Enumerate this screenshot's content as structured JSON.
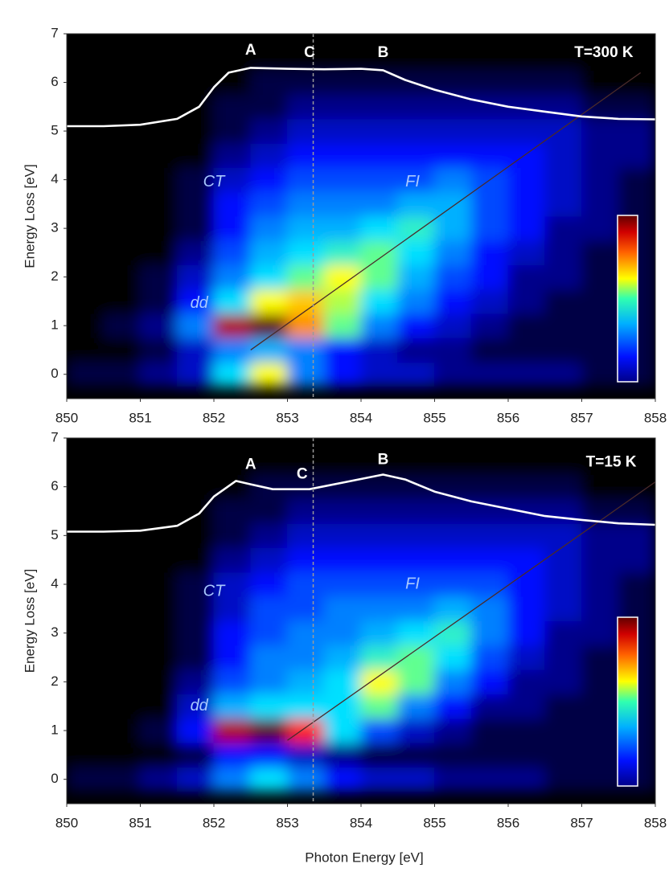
{
  "chart_data": [
    {
      "type": "heatmap",
      "ylabel": "Energy Loss [eV]",
      "xlim": [
        850,
        858
      ],
      "ylim": [
        -0.5,
        7
      ],
      "xticks": [
        850,
        851,
        852,
        853,
        854,
        855,
        856,
        857,
        858
      ],
      "yticks": [
        0,
        1,
        2,
        3,
        4,
        5,
        6,
        7
      ],
      "x": [
        850.25,
        850.75,
        851.25,
        851.75,
        852.25,
        852.75,
        853.25,
        853.75,
        854.25,
        854.75,
        855.25,
        855.75,
        856.25,
        856.75,
        857.25,
        857.75
      ],
      "y": [
        0,
        0.5,
        1,
        1.5,
        2,
        2.5,
        3,
        3.5,
        4,
        4.5,
        5,
        5.5,
        6,
        6.5
      ],
      "z": [
        [
          0.5,
          0.5,
          1,
          1.5,
          4,
          6,
          3,
          2,
          1.5,
          1.5,
          1,
          1,
          1,
          1,
          0.5,
          0.5
        ],
        [
          0,
          0,
          0.5,
          1.5,
          3,
          3.5,
          3,
          2,
          1.5,
          1,
          1,
          0.5,
          0.5,
          0.5,
          0.5,
          0.5
        ],
        [
          0,
          0.5,
          1,
          3,
          9,
          10,
          7,
          5,
          3,
          2,
          1.5,
          1,
          0.5,
          0.5,
          0.5,
          0.5
        ],
        [
          0,
          0,
          0.5,
          2,
          4,
          6,
          6.5,
          5.5,
          4,
          3,
          2,
          1.5,
          1,
          0.5,
          0.5,
          0.5
        ],
        [
          0,
          0,
          0.5,
          1.5,
          3,
          4,
          5,
          6,
          5,
          3.5,
          2.5,
          2,
          1,
          1,
          0.5,
          0.5
        ],
        [
          0,
          0,
          0,
          1,
          2.5,
          3.5,
          4,
          4.5,
          5,
          4,
          3,
          2,
          1.5,
          1,
          0.5,
          0.5
        ],
        [
          0,
          0,
          0,
          0.5,
          2,
          3,
          3.5,
          3.5,
          4,
          4.5,
          3.5,
          2.5,
          2,
          1,
          1,
          0.5
        ],
        [
          0,
          0,
          0,
          0.5,
          2,
          2.5,
          3,
          3,
          3,
          3.5,
          3.5,
          2.5,
          2,
          1.5,
          1,
          0.5
        ],
        [
          0,
          0,
          0,
          0.5,
          1.5,
          2,
          2.5,
          2.5,
          2.5,
          2.5,
          3,
          2.5,
          2,
          1.5,
          1,
          0.5
        ],
        [
          0,
          0,
          0,
          0,
          1,
          1.5,
          2,
          2,
          2,
          2,
          2,
          2,
          2,
          1.5,
          1,
          1
        ],
        [
          0,
          0,
          0,
          0,
          0.5,
          1,
          1.5,
          1.5,
          1.5,
          1.5,
          1.5,
          1.5,
          1.5,
          1.5,
          1,
          1
        ],
        [
          0,
          0,
          0,
          0,
          0.5,
          0.5,
          1,
          1,
          1,
          1,
          1,
          1,
          1,
          1,
          0.5,
          0.5
        ],
        [
          0,
          0,
          0,
          0,
          0,
          0.5,
          0.5,
          0.5,
          0.5,
          0.5,
          0.5,
          0.5,
          0.5,
          0.5,
          0,
          0
        ],
        [
          0,
          0,
          0,
          0,
          0,
          0,
          0,
          0,
          0,
          0,
          0,
          0,
          0,
          0,
          0,
          0
        ]
      ],
      "curve": {
        "color": "#ffffff",
        "x": [
          850,
          850.5,
          851,
          851.5,
          851.8,
          852,
          852.2,
          852.5,
          853,
          853.5,
          854,
          854.3,
          854.6,
          855,
          855.5,
          856,
          856.5,
          857,
          857.5,
          858
        ],
        "y": [
          5.1,
          5.1,
          5.13,
          5.25,
          5.5,
          5.9,
          6.2,
          6.3,
          6.28,
          6.27,
          6.28,
          6.25,
          6.05,
          5.85,
          5.65,
          5.5,
          5.4,
          5.3,
          5.25,
          5.24
        ]
      },
      "guide": {
        "color": "#4a2a2a",
        "x": [
          852.5,
          857.8
        ],
        "y": [
          0.5,
          6.2
        ]
      },
      "vline": {
        "color": "#9a9a9a",
        "x": 853.35
      },
      "annotations": [
        {
          "text": "A",
          "x": 852.5,
          "y": 6.65,
          "color": "#ffffff"
        },
        {
          "text": "C",
          "x": 853.3,
          "y": 6.6,
          "color": "#ffffff"
        },
        {
          "text": "B",
          "x": 854.3,
          "y": 6.6,
          "color": "#ffffff"
        },
        {
          "text": "T=300 K",
          "x": 857.3,
          "y": 6.6,
          "color": "#ffffff"
        },
        {
          "text": "CT",
          "x": 852.0,
          "y": 3.95,
          "color": "#a8c8ff",
          "italic": true
        },
        {
          "text": "FI",
          "x": 854.7,
          "y": 3.95,
          "color": "#a8c8ff",
          "italic": true
        },
        {
          "text": "dd",
          "x": 851.8,
          "y": 1.45,
          "color": "#a8c8ff",
          "italic": true
        }
      ]
    },
    {
      "type": "heatmap",
      "ylabel": "Energy Loss [eV]",
      "xlabel": "Photon Energy [eV]",
      "xlim": [
        850,
        858
      ],
      "ylim": [
        -0.5,
        7
      ],
      "xticks": [
        850,
        851,
        852,
        853,
        854,
        855,
        856,
        857,
        858
      ],
      "yticks": [
        0,
        1,
        2,
        3,
        4,
        5,
        6,
        7
      ],
      "x": [
        850.25,
        850.75,
        851.25,
        851.75,
        852.25,
        852.75,
        853.25,
        853.75,
        854.25,
        854.75,
        855.25,
        855.75,
        856.25,
        856.75,
        857.25,
        857.75
      ],
      "y": [
        0,
        0.5,
        1,
        1.5,
        2,
        2.5,
        3,
        3.5,
        4,
        4.5,
        5,
        5.5,
        6,
        6.5
      ],
      "z": [
        [
          0.5,
          0.5,
          1,
          1.5,
          3,
          4,
          3,
          2,
          1.5,
          1.5,
          1,
          1,
          1,
          0.5,
          0.5,
          0.5
        ],
        [
          0,
          0,
          0,
          0.5,
          2,
          2,
          1.5,
          1,
          0.5,
          0.5,
          0.5,
          0.5,
          0.5,
          0.5,
          0.5,
          0.5
        ],
        [
          0,
          0,
          0.5,
          2,
          9,
          10,
          8,
          4,
          2.5,
          1.5,
          1,
          0.5,
          0.5,
          0.5,
          0.5,
          0.5
        ],
        [
          0,
          0,
          0,
          1.5,
          3.5,
          4,
          4,
          4,
          5,
          3,
          2,
          1,
          1,
          0.5,
          0.5,
          0.5
        ],
        [
          0,
          0,
          0,
          1,
          2.5,
          3,
          3.5,
          4,
          6,
          5,
          3,
          2,
          1,
          1,
          0.5,
          0.5
        ],
        [
          0,
          0,
          0,
          0.5,
          2,
          3,
          3,
          3.5,
          4.5,
          5,
          4,
          2.5,
          1.5,
          1,
          0.5,
          0.5
        ],
        [
          0,
          0,
          0,
          0.5,
          2,
          2.5,
          3,
          3,
          3.5,
          4,
          4.5,
          3,
          2,
          1,
          1,
          0.5
        ],
        [
          0,
          0,
          0,
          0.5,
          1.5,
          2.5,
          2.5,
          3,
          3,
          3,
          3.5,
          3,
          2,
          1.5,
          1,
          0.5
        ],
        [
          0,
          0,
          0,
          0.5,
          1.5,
          2,
          2.5,
          2.5,
          2.5,
          2.5,
          2.5,
          2.5,
          2,
          1.5,
          1,
          0.5
        ],
        [
          0,
          0,
          0,
          0,
          1,
          1.5,
          2,
          2,
          2,
          2,
          2,
          2,
          2,
          1.5,
          1,
          1
        ],
        [
          0,
          0,
          0,
          0,
          0.5,
          1,
          1.5,
          1.5,
          1.5,
          1.5,
          1.5,
          1.5,
          1.5,
          1.5,
          1,
          1
        ],
        [
          0,
          0,
          0,
          0,
          0.5,
          0.5,
          1,
          1,
          1,
          1,
          1,
          1,
          1,
          1,
          0.5,
          0.5
        ],
        [
          0,
          0,
          0,
          0,
          0,
          0.5,
          0.5,
          0.5,
          0.5,
          0.5,
          0.5,
          0.5,
          0.5,
          0.5,
          0,
          0
        ],
        [
          0,
          0,
          0,
          0,
          0,
          0,
          0,
          0,
          0,
          0,
          0,
          0,
          0,
          0,
          0,
          0
        ]
      ],
      "curve": {
        "color": "#ffffff",
        "x": [
          850,
          850.5,
          851,
          851.5,
          851.8,
          852,
          852.3,
          852.5,
          852.8,
          853.3,
          853.8,
          854.3,
          854.6,
          855,
          855.5,
          856,
          856.5,
          857,
          857.5,
          858
        ],
        "y": [
          5.08,
          5.08,
          5.1,
          5.2,
          5.45,
          5.8,
          6.12,
          6.05,
          5.95,
          5.95,
          6.1,
          6.25,
          6.15,
          5.9,
          5.7,
          5.55,
          5.4,
          5.32,
          5.25,
          5.22
        ]
      },
      "guide": {
        "color": "#4a2a2a",
        "x": [
          853.0,
          858
        ],
        "y": [
          0.8,
          6.1
        ]
      },
      "vline": {
        "color": "#9a9a9a",
        "x": 853.35
      },
      "annotations": [
        {
          "text": "A",
          "x": 852.5,
          "y": 6.45,
          "color": "#ffffff"
        },
        {
          "text": "C",
          "x": 853.2,
          "y": 6.25,
          "color": "#ffffff"
        },
        {
          "text": "B",
          "x": 854.3,
          "y": 6.55,
          "color": "#ffffff"
        },
        {
          "text": "T=15 K",
          "x": 857.4,
          "y": 6.5,
          "color": "#ffffff"
        },
        {
          "text": "CT",
          "x": 852.0,
          "y": 3.85,
          "color": "#a8c8ff",
          "italic": true
        },
        {
          "text": "FI",
          "x": 854.7,
          "y": 4.0,
          "color": "#a8c8ff",
          "italic": true
        },
        {
          "text": "dd",
          "x": 851.8,
          "y": 1.5,
          "color": "#a8c8ff",
          "italic": true
        }
      ]
    }
  ]
}
